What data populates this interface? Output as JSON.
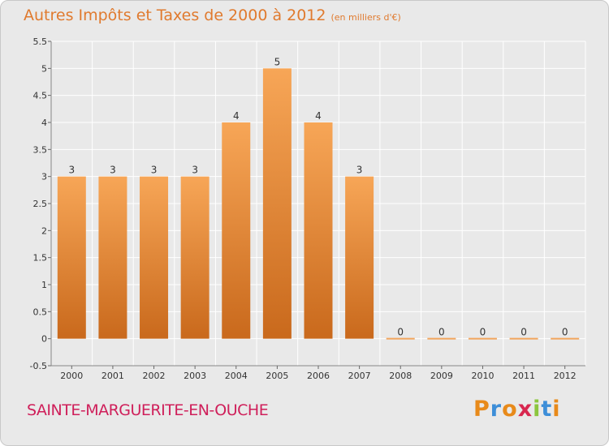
{
  "header": {
    "title": "Autres Impôts et Taxes de 2000 à 2012",
    "subtitle": "(en milliers d'€)"
  },
  "footer": {
    "commune": "SAINTE-MARGUERITE-EN-OUCHE",
    "logo_letters": [
      "P",
      "r",
      "o",
      "x",
      "i",
      "t",
      "i"
    ],
    "logo_colors": [
      "#e88a1a",
      "#3d8ed8",
      "#e88a1a",
      "#d8274f",
      "#8cc63f",
      "#3d8ed8",
      "#e88a1a"
    ]
  },
  "colors": {
    "bar_light": "#f7a657",
    "bar_dark": "#c9691c",
    "zero_bar": "#f2a65e",
    "axis_text": "#333333",
    "plot_bg": "#e9e9e9",
    "grid": "#ffffff"
  },
  "chart_data": {
    "type": "bar",
    "title": "Autres Impôts et Taxes de 2000 à 2012",
    "subtitle": "(en milliers d'€)",
    "categories": [
      "2000",
      "2001",
      "2002",
      "2003",
      "2004",
      "2005",
      "2006",
      "2007",
      "2008",
      "2009",
      "2010",
      "2011",
      "2012"
    ],
    "values": [
      3,
      3,
      3,
      3,
      4,
      5,
      4,
      3,
      0,
      0,
      0,
      0,
      0
    ],
    "data_labels": [
      "3",
      "3",
      "3",
      "3",
      "4",
      "5",
      "4",
      "3",
      "0",
      "0",
      "0",
      "0",
      "0"
    ],
    "y_ticks": [
      -0.5,
      0,
      0.5,
      1,
      1.5,
      2,
      2.5,
      3,
      3.5,
      4,
      4.5,
      5,
      5.5
    ],
    "y_tick_labels": [
      "-0.5",
      "0",
      "0.5",
      "1",
      "1.5",
      "2",
      "2.5",
      "3",
      "3.5",
      "4",
      "4.5",
      "5",
      "5.5"
    ],
    "ylim": [
      -0.5,
      5.5
    ],
    "xlabel": "",
    "ylabel": "",
    "grid": true,
    "legend": "none"
  }
}
